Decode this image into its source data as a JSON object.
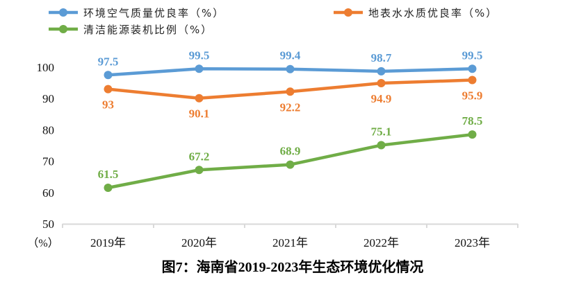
{
  "chart_data": {
    "type": "line",
    "title": "图7：海南省2019-2023年生态环境优化情况",
    "xlabel": "",
    "ylabel": "（%）",
    "categories": [
      "2019年",
      "2020年",
      "2021年",
      "2022年",
      "2023年"
    ],
    "ylim": [
      50,
      100
    ],
    "yticks": [
      50,
      60,
      70,
      80,
      90,
      100
    ],
    "grid": false,
    "legend_position": "top",
    "series": [
      {
        "name": "环境空气质量优良率（%）",
        "color": "#5B9BD5",
        "values": [
          97.5,
          99.5,
          99.4,
          98.7,
          99.5
        ],
        "labels": [
          "97.5",
          "99.5",
          "99.4",
          "98.7",
          "99.5"
        ],
        "label_position": "above"
      },
      {
        "name": "地表水水质优良率（%）",
        "color": "#ED7D31",
        "values": [
          93,
          90.1,
          92.2,
          94.9,
          95.9
        ],
        "labels": [
          "93",
          "90.1",
          "92.2",
          "94.9",
          "95.9"
        ],
        "label_position": "below"
      },
      {
        "name": "清洁能源装机比例（%）",
        "color": "#70AD47",
        "values": [
          61.5,
          67.2,
          68.9,
          75.1,
          78.5
        ],
        "labels": [
          "61.5",
          "67.2",
          "68.9",
          "75.1",
          "78.5"
        ],
        "label_position": "above"
      }
    ]
  },
  "axis_color": "#D9D9D9"
}
